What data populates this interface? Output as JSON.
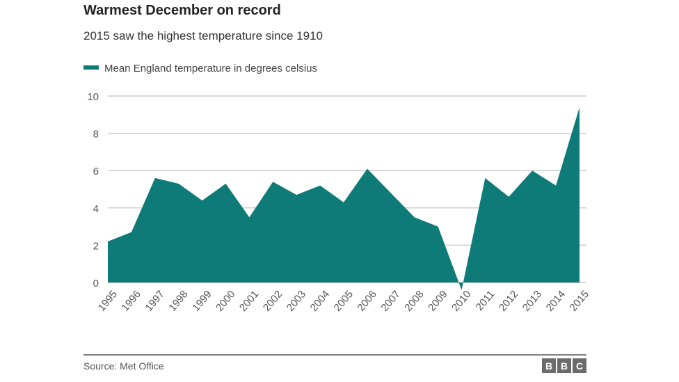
{
  "chart_data": {
    "type": "area",
    "title": "Warmest December on record",
    "subtitle": "2015 saw the highest temperature since 1910",
    "legend": [
      "Mean England temperature in degrees celsius"
    ],
    "legend_placement": "top-left",
    "series": [
      {
        "name": "Mean England temperature in degrees celsius",
        "color": "#0f7b78",
        "values": [
          2.2,
          2.7,
          5.6,
          5.3,
          4.4,
          5.3,
          3.5,
          5.4,
          4.7,
          5.2,
          4.3,
          6.1,
          4.8,
          3.5,
          3.0,
          -0.4,
          5.6,
          4.6,
          6.0,
          5.2,
          9.4
        ]
      }
    ],
    "x": [
      "1995",
      "1996",
      "1997",
      "1998",
      "1999",
      "2000",
      "2001",
      "2002",
      "2003",
      "2004",
      "2005",
      "2006",
      "2007",
      "2008",
      "2009",
      "2010",
      "2011",
      "2012",
      "2013",
      "2014",
      "2015"
    ],
    "yticks": [
      "0",
      "2",
      "4",
      "6",
      "8",
      "10"
    ],
    "ylim": [
      0,
      10
    ],
    "grid": true,
    "xlabel": "",
    "ylabel": ""
  },
  "footer": {
    "source": "Source: Met Office",
    "logo": "BBC"
  }
}
